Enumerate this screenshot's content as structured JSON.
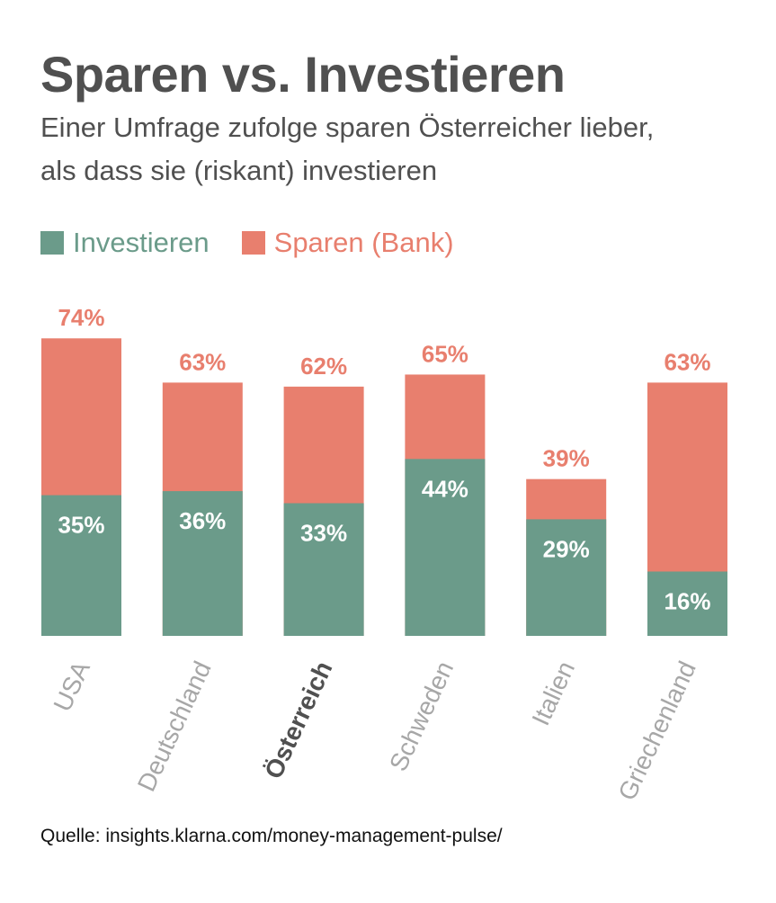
{
  "title": "Sparen vs. Investieren",
  "subtitle_line1": "Einer Umfrage zufolge sparen Österreicher lieber,",
  "subtitle_line2": "als dass sie (riskant) investieren",
  "source": "Quelle: insights.klarna.com/money-management-pulse/",
  "colors": {
    "investieren": "#6b9b8a",
    "sparen": "#e87f6e",
    "text": "#505050",
    "axis_label": "#a7a7a7"
  },
  "chart_data": {
    "type": "bar",
    "stacked": true,
    "categories": [
      "USA",
      "Deutschland",
      "Österreich",
      "Schweden",
      "Italien",
      "Griechenland"
    ],
    "highlight_category": "Österreich",
    "series": [
      {
        "name": "Investieren",
        "values": [
          35,
          36,
          33,
          44,
          29,
          16
        ]
      },
      {
        "name": "Sparen (Bank)",
        "values": [
          74,
          63,
          62,
          65,
          39,
          63
        ]
      }
    ],
    "value_labels": {
      "Investieren": [
        "35%",
        "36%",
        "33%",
        "44%",
        "29%",
        "16%"
      ],
      "Sparen (Bank)": [
        "74%",
        "63%",
        "62%",
        "65%",
        "39%",
        "63%"
      ]
    },
    "legend_position": "top-left",
    "grid": false,
    "ylim": [
      0,
      110
    ]
  }
}
